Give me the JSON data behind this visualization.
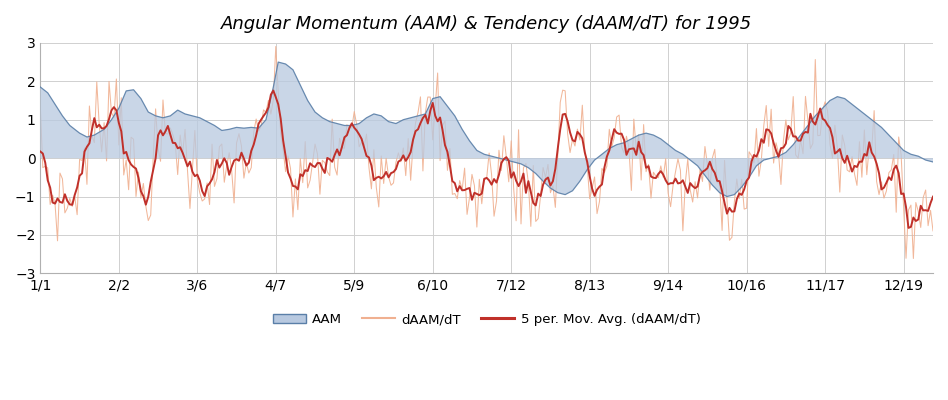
{
  "title": "Angular Momentum (AAM) & Tendency (dAAM/dT) for 1995",
  "title_style": "italic",
  "xlabels": [
    "1/1",
    "2/2",
    "3/6",
    "4/7",
    "5/9",
    "6/10",
    "7/12",
    "8/13",
    "9/14",
    "10/16",
    "11/17",
    "12/19"
  ],
  "ylim": [
    -3,
    3
  ],
  "yticks": [
    -3,
    -2,
    -1,
    0,
    1,
    2,
    3
  ],
  "aam_fill_color": "#b8c9e0",
  "aam_edge_color": "#5a7fa8",
  "daam_raw_color": "#f0b090",
  "smooth_color": "#c0302a",
  "background_color": "#ffffff",
  "legend_labels": [
    "AAM",
    "dAAM/dT",
    "5 per. Mov. Avg. (dAAM/dT)"
  ],
  "tick_days": [
    0,
    32,
    64,
    96,
    128,
    160,
    192,
    224,
    256,
    288,
    320,
    352
  ],
  "aam_keypoints": [
    [
      0,
      1.85
    ],
    [
      3,
      1.7
    ],
    [
      6,
      1.4
    ],
    [
      9,
      1.1
    ],
    [
      12,
      0.85
    ],
    [
      16,
      0.65
    ],
    [
      19,
      0.55
    ],
    [
      22,
      0.6
    ],
    [
      26,
      0.75
    ],
    [
      29,
      1.0
    ],
    [
      32,
      1.3
    ],
    [
      35,
      1.75
    ],
    [
      38,
      1.78
    ],
    [
      41,
      1.55
    ],
    [
      44,
      1.2
    ],
    [
      47,
      1.1
    ],
    [
      50,
      1.05
    ],
    [
      53,
      1.1
    ],
    [
      56,
      1.25
    ],
    [
      59,
      1.15
    ],
    [
      62,
      1.1
    ],
    [
      65,
      1.05
    ],
    [
      68,
      0.95
    ],
    [
      71,
      0.85
    ],
    [
      74,
      0.72
    ],
    [
      77,
      0.75
    ],
    [
      80,
      0.8
    ],
    [
      83,
      0.78
    ],
    [
      86,
      0.8
    ],
    [
      89,
      0.78
    ],
    [
      92,
      1.0
    ],
    [
      95,
      1.85
    ],
    [
      97,
      2.5
    ],
    [
      100,
      2.45
    ],
    [
      103,
      2.3
    ],
    [
      106,
      1.9
    ],
    [
      109,
      1.5
    ],
    [
      112,
      1.2
    ],
    [
      115,
      1.05
    ],
    [
      118,
      0.95
    ],
    [
      121,
      0.9
    ],
    [
      124,
      0.85
    ],
    [
      127,
      0.85
    ],
    [
      130,
      0.9
    ],
    [
      133,
      1.05
    ],
    [
      136,
      1.15
    ],
    [
      139,
      1.1
    ],
    [
      142,
      0.95
    ],
    [
      145,
      0.9
    ],
    [
      148,
      1.0
    ],
    [
      151,
      1.05
    ],
    [
      154,
      1.1
    ],
    [
      157,
      1.15
    ],
    [
      160,
      1.55
    ],
    [
      163,
      1.6
    ],
    [
      166,
      1.35
    ],
    [
      169,
      1.1
    ],
    [
      172,
      0.75
    ],
    [
      175,
      0.45
    ],
    [
      178,
      0.2
    ],
    [
      181,
      0.1
    ],
    [
      184,
      0.05
    ],
    [
      187,
      0.0
    ],
    [
      190,
      -0.05
    ],
    [
      193,
      -0.1
    ],
    [
      196,
      -0.15
    ],
    [
      199,
      -0.25
    ],
    [
      202,
      -0.4
    ],
    [
      205,
      -0.6
    ],
    [
      208,
      -0.78
    ],
    [
      211,
      -0.9
    ],
    [
      214,
      -0.95
    ],
    [
      217,
      -0.85
    ],
    [
      220,
      -0.6
    ],
    [
      223,
      -0.3
    ],
    [
      226,
      -0.05
    ],
    [
      229,
      0.1
    ],
    [
      232,
      0.25
    ],
    [
      235,
      0.35
    ],
    [
      238,
      0.4
    ],
    [
      241,
      0.5
    ],
    [
      244,
      0.6
    ],
    [
      247,
      0.65
    ],
    [
      250,
      0.6
    ],
    [
      253,
      0.5
    ],
    [
      256,
      0.35
    ],
    [
      259,
      0.2
    ],
    [
      262,
      0.1
    ],
    [
      265,
      -0.05
    ],
    [
      268,
      -0.2
    ],
    [
      271,
      -0.45
    ],
    [
      274,
      -0.7
    ],
    [
      277,
      -0.9
    ],
    [
      280,
      -1.0
    ],
    [
      283,
      -0.95
    ],
    [
      286,
      -0.75
    ],
    [
      289,
      -0.5
    ],
    [
      292,
      -0.2
    ],
    [
      295,
      -0.05
    ],
    [
      298,
      0.0
    ],
    [
      301,
      0.05
    ],
    [
      304,
      0.15
    ],
    [
      307,
      0.35
    ],
    [
      310,
      0.6
    ],
    [
      313,
      0.85
    ],
    [
      316,
      1.1
    ],
    [
      319,
      1.3
    ],
    [
      322,
      1.5
    ],
    [
      325,
      1.6
    ],
    [
      328,
      1.55
    ],
    [
      331,
      1.4
    ],
    [
      334,
      1.25
    ],
    [
      337,
      1.1
    ],
    [
      340,
      0.95
    ],
    [
      343,
      0.8
    ],
    [
      346,
      0.6
    ],
    [
      349,
      0.4
    ],
    [
      352,
      0.2
    ],
    [
      355,
      0.1
    ],
    [
      358,
      0.05
    ],
    [
      361,
      -0.05
    ],
    [
      364,
      -0.1
    ]
  ],
  "daam_keypoints": [
    [
      0,
      0.3
    ],
    [
      3,
      -0.5
    ],
    [
      6,
      -1.2
    ],
    [
      9,
      -0.9
    ],
    [
      12,
      -1.35
    ],
    [
      15,
      -0.6
    ],
    [
      18,
      0.1
    ],
    [
      21,
      0.5
    ],
    [
      24,
      0.9
    ],
    [
      27,
      1.3
    ],
    [
      30,
      1.5
    ],
    [
      33,
      1.25
    ],
    [
      36,
      -0.1
    ],
    [
      39,
      -0.8
    ],
    [
      42,
      -1.0
    ],
    [
      45,
      -0.4
    ],
    [
      48,
      0.1
    ],
    [
      51,
      0.5
    ],
    [
      54,
      0.7
    ],
    [
      57,
      0.3
    ],
    [
      60,
      -0.1
    ],
    [
      63,
      -0.3
    ],
    [
      66,
      -0.4
    ],
    [
      69,
      -0.5
    ],
    [
      72,
      -0.6
    ],
    [
      75,
      -0.5
    ],
    [
      78,
      -0.2
    ],
    [
      81,
      0.1
    ],
    [
      84,
      0.0
    ],
    [
      87,
      -0.1
    ],
    [
      90,
      0.5
    ],
    [
      93,
      1.55
    ],
    [
      96,
      1.55
    ],
    [
      99,
      0.5
    ],
    [
      102,
      -0.5
    ],
    [
      105,
      -1.0
    ],
    [
      108,
      -0.6
    ],
    [
      111,
      -0.3
    ],
    [
      114,
      -0.2
    ],
    [
      117,
      -0.1
    ],
    [
      120,
      0.0
    ],
    [
      123,
      0.2
    ],
    [
      126,
      0.5
    ],
    [
      129,
      0.7
    ],
    [
      132,
      0.6
    ],
    [
      135,
      0.3
    ],
    [
      138,
      -0.1
    ],
    [
      141,
      -0.3
    ],
    [
      144,
      0.1
    ],
    [
      147,
      0.4
    ],
    [
      150,
      0.5
    ],
    [
      153,
      0.5
    ],
    [
      156,
      0.6
    ],
    [
      159,
      1.0
    ],
    [
      162,
      1.1
    ],
    [
      165,
      0.3
    ],
    [
      168,
      -0.3
    ],
    [
      171,
      -0.7
    ],
    [
      174,
      -0.9
    ],
    [
      177,
      -1.05
    ],
    [
      180,
      -0.9
    ],
    [
      183,
      -0.6
    ],
    [
      186,
      -0.3
    ],
    [
      189,
      -0.1
    ],
    [
      192,
      -0.2
    ],
    [
      195,
      -0.5
    ],
    [
      198,
      -0.7
    ],
    [
      201,
      -0.8
    ],
    [
      204,
      -0.75
    ],
    [
      207,
      -0.65
    ],
    [
      210,
      -0.6
    ],
    [
      213,
      1.95
    ],
    [
      216,
      0.5
    ],
    [
      219,
      0.4
    ],
    [
      222,
      0.3
    ],
    [
      225,
      -0.8
    ],
    [
      228,
      -1.1
    ],
    [
      231,
      0.1
    ],
    [
      234,
      0.3
    ],
    [
      237,
      0.5
    ],
    [
      240,
      0.35
    ],
    [
      243,
      0.2
    ],
    [
      246,
      0.1
    ],
    [
      249,
      -0.2
    ],
    [
      252,
      -0.4
    ],
    [
      255,
      -0.6
    ],
    [
      258,
      -0.7
    ],
    [
      261,
      -0.8
    ],
    [
      264,
      -0.9
    ],
    [
      267,
      -0.8
    ],
    [
      270,
      -0.6
    ],
    [
      273,
      -0.4
    ],
    [
      276,
      -0.3
    ],
    [
      279,
      -0.6
    ],
    [
      282,
      -1.0
    ],
    [
      285,
      -1.0
    ],
    [
      288,
      -0.5
    ],
    [
      291,
      -0.1
    ],
    [
      294,
      0.2
    ],
    [
      297,
      0.3
    ],
    [
      300,
      0.2
    ],
    [
      303,
      0.3
    ],
    [
      306,
      0.7
    ],
    [
      309,
      0.9
    ],
    [
      312,
      0.8
    ],
    [
      315,
      0.75
    ],
    [
      318,
      1.05
    ],
    [
      321,
      1.1
    ],
    [
      324,
      0.5
    ],
    [
      327,
      -0.1
    ],
    [
      330,
      -0.2
    ],
    [
      333,
      0.1
    ],
    [
      336,
      0.5
    ],
    [
      339,
      0.3
    ],
    [
      342,
      -0.1
    ],
    [
      345,
      -0.5
    ],
    [
      348,
      -0.9
    ],
    [
      351,
      -1.1
    ],
    [
      354,
      -1.3
    ],
    [
      357,
      -1.2
    ],
    [
      360,
      -1.4
    ],
    [
      363,
      -1.5
    ],
    [
      364,
      -1.5
    ]
  ]
}
